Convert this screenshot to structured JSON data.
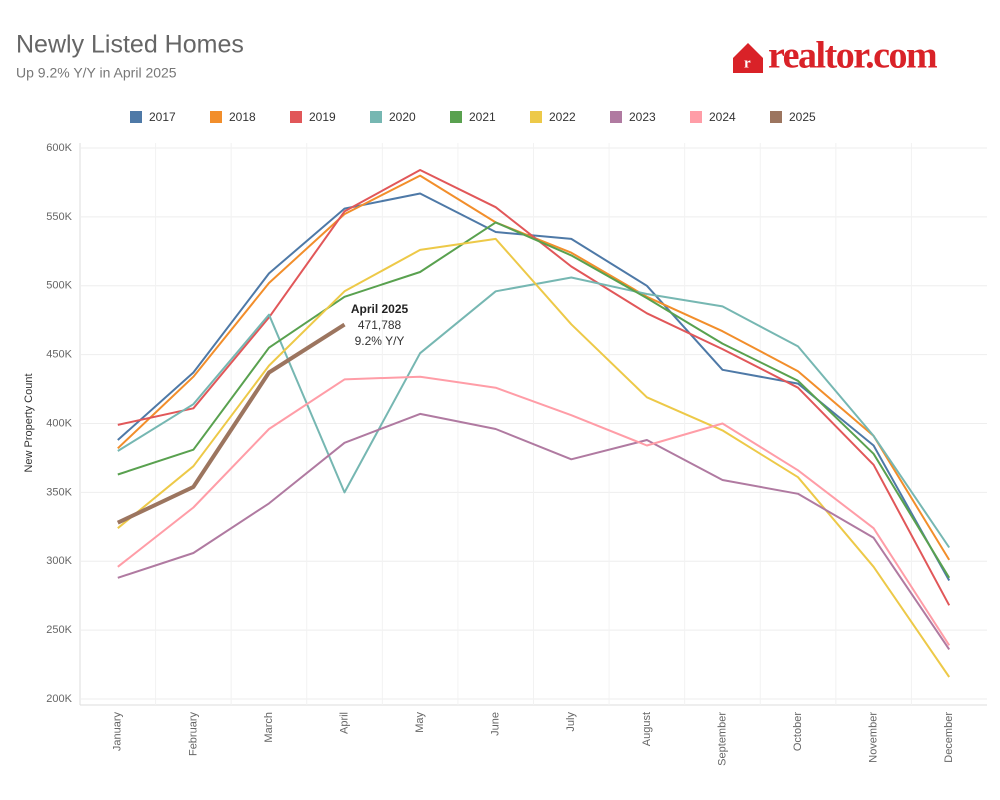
{
  "brand": "realtor.com",
  "chart_data": {
    "type": "line",
    "title": "Newly Listed Homes",
    "subtitle": "Up 9.2% Y/Y in April 2025",
    "y_label": "New Property Count",
    "categories": [
      "January",
      "February",
      "March",
      "April",
      "May",
      "June",
      "July",
      "August",
      "September",
      "October",
      "November",
      "December"
    ],
    "ylim": [
      200000,
      600000
    ],
    "yticks": [
      {
        "value": 200000,
        "label": "200K"
      },
      {
        "value": 250000,
        "label": "250K"
      },
      {
        "value": 300000,
        "label": "300K"
      },
      {
        "value": 350000,
        "label": "350K"
      },
      {
        "value": 400000,
        "label": "400K"
      },
      {
        "value": 450000,
        "label": "450K"
      },
      {
        "value": 500000,
        "label": "500K"
      },
      {
        "value": 550000,
        "label": "550K"
      },
      {
        "value": 600000,
        "label": "600K"
      }
    ],
    "grid": true,
    "legend": "top",
    "series": [
      {
        "name": "2017",
        "color": "#4e79a7",
        "values": [
          388000,
          437000,
          509000,
          556000,
          567000,
          539000,
          534000,
          500000,
          439000,
          429000,
          384000,
          286000
        ]
      },
      {
        "name": "2018",
        "color": "#f28e2b",
        "values": [
          382000,
          434000,
          502000,
          552000,
          580000,
          546000,
          524000,
          492000,
          467000,
          438000,
          391000,
          301000
        ]
      },
      {
        "name": "2019",
        "color": "#e15759",
        "values": [
          399000,
          411000,
          477000,
          554000,
          584000,
          557000,
          514000,
          480000,
          454000,
          426000,
          370000,
          268000
        ]
      },
      {
        "name": "2020",
        "color": "#76b7b2",
        "values": [
          380000,
          414000,
          479000,
          350000,
          451000,
          496000,
          506000,
          494000,
          485000,
          456000,
          391000,
          310000
        ]
      },
      {
        "name": "2021",
        "color": "#59a14f",
        "values": [
          363000,
          381000,
          455000,
          492000,
          510000,
          546000,
          522000,
          491000,
          458000,
          431000,
          378000,
          288000
        ]
      },
      {
        "name": "2022",
        "color": "#edc948",
        "values": [
          324000,
          369000,
          442000,
          496000,
          526000,
          534000,
          472000,
          419000,
          395000,
          361000,
          296000,
          216000
        ]
      },
      {
        "name": "2023",
        "color": "#b07aa1",
        "values": [
          288000,
          306000,
          342000,
          386000,
          407000,
          396000,
          374000,
          388000,
          359000,
          349000,
          317000,
          236000
        ]
      },
      {
        "name": "2024",
        "color": "#ff9da7",
        "values": [
          296000,
          339000,
          396000,
          432000,
          434000,
          426000,
          406000,
          384000,
          400000,
          366000,
          324000,
          239000
        ]
      },
      {
        "name": "2025",
        "color": "#9c755f",
        "values": [
          328000,
          354000,
          437000,
          471788,
          null,
          null,
          null,
          null,
          null,
          null,
          null,
          null
        ]
      }
    ],
    "annotation": {
      "title": "April 2025",
      "value_label": "471,788",
      "change": "9.2% Y/Y"
    }
  }
}
